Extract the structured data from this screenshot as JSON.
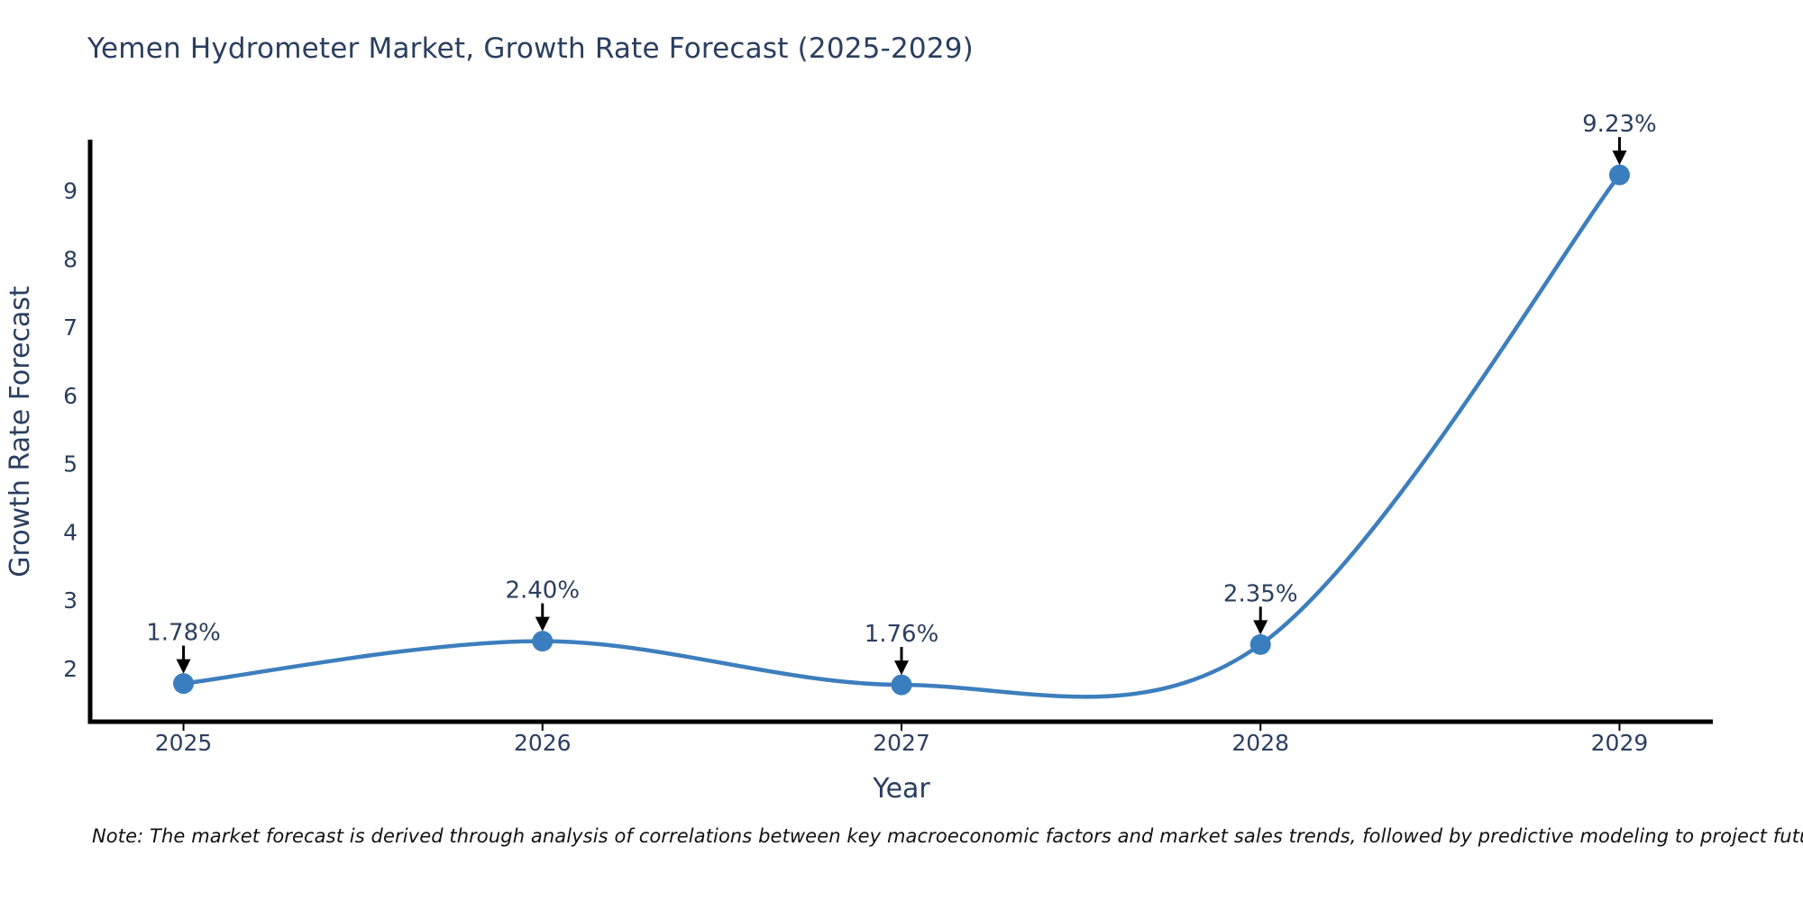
{
  "title": "Yemen Hydrometer Market, Growth Rate Forecast (2025-2029)",
  "note": "Note: The market forecast is derived through analysis of correlations between key macroeconomic factors and market sales trends, followed by predictive modeling to project future sales.",
  "chart_data": {
    "type": "line",
    "title": "Yemen Hydrometer Market, Growth Rate Forecast (2025-2029)",
    "xlabel": "Year",
    "ylabel": "Growth Rate Forecast",
    "x": [
      2025,
      2026,
      2027,
      2028,
      2029
    ],
    "values": [
      1.78,
      2.4,
      1.76,
      2.35,
      9.23
    ],
    "point_labels": [
      "1.78%",
      "2.40%",
      "1.76%",
      "2.35%",
      "9.23%"
    ],
    "x_ticks": [
      "2025",
      "2026",
      "2027",
      "2028",
      "2029"
    ],
    "y_ticks": [
      2,
      3,
      4,
      5,
      6,
      7,
      8,
      9
    ],
    "xlim": [
      2024.74,
      2029.26
    ],
    "ylim": [
      1.22,
      9.72
    ],
    "grid": false,
    "legend": "none",
    "line_shape": "spline",
    "colors": {
      "line": "#3d7ebd",
      "marker": "#3a7ebf",
      "axis": "#000000",
      "text": "#2a3f5f",
      "annotation": "#2a3f5f",
      "arrow": "#000000",
      "note": "#111111",
      "background": "#ffffff"
    }
  }
}
